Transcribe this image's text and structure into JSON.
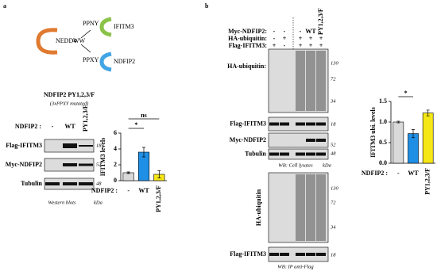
{
  "panel_a": {
    "label": "a",
    "diagram": {
      "nedd4": "NEDD4",
      "ww": "WW",
      "ppny": "PPNY",
      "ifitm3": "IFITM3",
      "ppxy": "PPXY",
      "ndfip2": "NDFIP2"
    },
    "blot": {
      "title": "NDFIP2 PY1,2,3/F",
      "subtitle": "(3xPPXY mutated)",
      "condition_label": "NDFIP2 :",
      "lanes": [
        "-",
        "WT",
        "PY1,2,3/F"
      ],
      "rows": [
        {
          "name": "Flag-IFITM3",
          "kda": "18"
        },
        {
          "name": "Myc-NDFIP2",
          "kda": "52"
        },
        {
          "name": "Tubulin",
          "kda": "48"
        }
      ],
      "footer": "Western blots",
      "kda_unit": "kDa"
    },
    "chart_data": {
      "type": "bar",
      "ylabel": "IFITM3 levels",
      "x_title": "NDFIP2 :",
      "categories": [
        "-",
        "WT",
        "PY1,2,3/F"
      ],
      "values": [
        1.0,
        3.6,
        0.8
      ],
      "errors": [
        0.1,
        0.6,
        0.45
      ],
      "colors": [
        "#d9d9d9",
        "#1f8fe5",
        "#f5e616"
      ],
      "ylim": [
        0,
        6
      ],
      "yticks": [
        0,
        2,
        4,
        6
      ],
      "significance": [
        {
          "from": 0,
          "to": 1,
          "label": "*"
        },
        {
          "from": 0,
          "to": 2,
          "label": "ns"
        }
      ]
    }
  },
  "panel_b": {
    "label": "b",
    "conditions": [
      {
        "name": "Myc-NDFIP2:",
        "lanes": [
          "-",
          "-",
          "-",
          "WT",
          "PY1,2,3/F"
        ]
      },
      {
        "name": "HA-ubiquitin:",
        "lanes": [
          "-",
          "+",
          "+",
          "+",
          "+"
        ]
      },
      {
        "name": "Flag-IFITM3:",
        "lanes": [
          "+",
          "-",
          "+",
          "+",
          "+"
        ]
      }
    ],
    "lysate_blots": [
      {
        "name": "HA-ubiquitin:",
        "kda": [
          "130",
          "72",
          "34"
        ]
      },
      {
        "name": "Flag-IFITM3",
        "kda": [
          "18"
        ]
      },
      {
        "name": "Myc-NDFIP2",
        "kda": [
          "52"
        ]
      },
      {
        "name": "Tubulin",
        "kda": [
          "48"
        ]
      }
    ],
    "lysate_footer": "WB: Cell lysates",
    "kda_unit": "kDa",
    "ip_blots": [
      {
        "name": "HA-ubiquitin",
        "kda": [
          "130",
          "72",
          "34"
        ]
      },
      {
        "name": "Flag-IFITM3",
        "kda": [
          "18"
        ]
      }
    ],
    "ip_footer": "WB: IP anti-Flag",
    "chart_data": {
      "type": "bar",
      "ylabel": "IFITM3 ubi. levels",
      "x_title": "NDFIP2 :",
      "categories": [
        "-",
        "WT",
        "PY1,2,3/F"
      ],
      "values": [
        1.0,
        0.72,
        1.22
      ],
      "errors": [
        0.02,
        0.1,
        0.07
      ],
      "colors": [
        "#d9d9d9",
        "#1f8fe5",
        "#f5e616"
      ],
      "ylim": [
        0,
        1.5
      ],
      "yticks": [
        {
          "value": 0,
          "label": "0.0"
        },
        {
          "value": 0.5,
          "label": "0.5"
        },
        {
          "value": 1,
          "label": "1.0"
        },
        {
          "value": 1.5,
          "label": "1.5"
        }
      ],
      "significance": [
        {
          "from": 0,
          "to": 1,
          "label": "*"
        }
      ]
    }
  }
}
